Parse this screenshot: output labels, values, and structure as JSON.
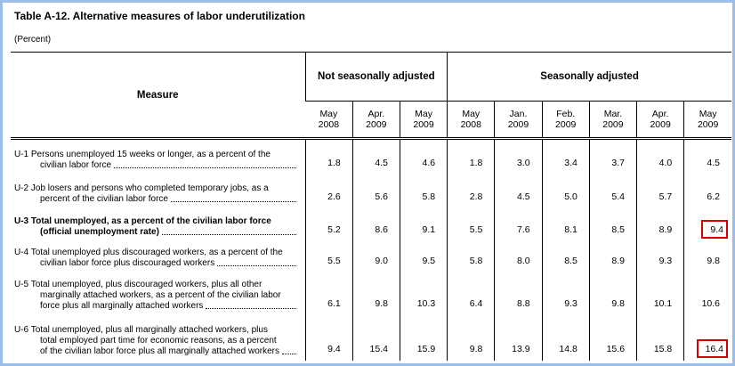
{
  "header": {
    "title": "Table A-12.  Alternative measures of labor underutilization",
    "subtitle": "(Percent)"
  },
  "table": {
    "measure_header": "Measure",
    "groups": [
      {
        "label": "Not seasonally adjusted",
        "span": 3
      },
      {
        "label": "Seasonally adjusted",
        "span": 6
      }
    ],
    "columns": [
      {
        "month": "May",
        "year": "2008"
      },
      {
        "month": "Apr.",
        "year": "2009"
      },
      {
        "month": "May",
        "year": "2009"
      },
      {
        "month": "May",
        "year": "2008"
      },
      {
        "month": "Jan.",
        "year": "2009"
      },
      {
        "month": "Feb.",
        "year": "2009"
      },
      {
        "month": "Mar.",
        "year": "2009"
      },
      {
        "month": "Apr.",
        "year": "2009"
      },
      {
        "month": "May",
        "year": "2009"
      }
    ],
    "rows": [
      {
        "lines": [
          "U-1 Persons unemployed 15 weeks or longer, as a percent of the",
          "civilian labor force"
        ],
        "values": [
          "1.8",
          "4.5",
          "4.6",
          "1.8",
          "3.0",
          "3.4",
          "3.7",
          "4.0",
          "4.5"
        ]
      },
      {
        "lines": [
          "U-2 Job losers and persons who completed temporary jobs, as a",
          "percent of the civilian labor force"
        ],
        "values": [
          "2.6",
          "5.6",
          "5.8",
          "2.8",
          "4.5",
          "5.0",
          "5.4",
          "5.7",
          "6.2"
        ]
      },
      {
        "lines": [
          "U-3 Total unemployed, as a percent of the civilian labor force",
          "(official unemployment rate)"
        ],
        "bold": true,
        "values": [
          "5.2",
          "8.6",
          "9.1",
          "5.5",
          "7.6",
          "8.1",
          "8.5",
          "8.9",
          "9.4"
        ]
      },
      {
        "lines": [
          "U-4 Total unemployed plus discouraged workers, as a percent of the",
          "civilian labor force plus discouraged workers"
        ],
        "values": [
          "5.5",
          "9.0",
          "9.5",
          "5.8",
          "8.0",
          "8.5",
          "8.9",
          "9.3",
          "9.8"
        ]
      },
      {
        "lines": [
          "U-5 Total unemployed, plus discouraged workers, plus all other",
          "marginally attached workers, as a percent of the civilian labor",
          "force plus all marginally attached workers"
        ],
        "values": [
          "6.1",
          "9.8",
          "10.3",
          "6.4",
          "8.8",
          "9.3",
          "9.8",
          "10.1",
          "10.6"
        ]
      },
      {
        "lines": [
          "U-6 Total unemployed, plus all marginally attached workers, plus",
          "total employed part time for economic reasons, as a percent",
          "of the civilian labor force plus all marginally attached workers"
        ],
        "values": [
          "9.4",
          "15.4",
          "15.9",
          "9.8",
          "13.9",
          "14.8",
          "15.6",
          "15.8",
          "16.4"
        ]
      }
    ]
  }
}
